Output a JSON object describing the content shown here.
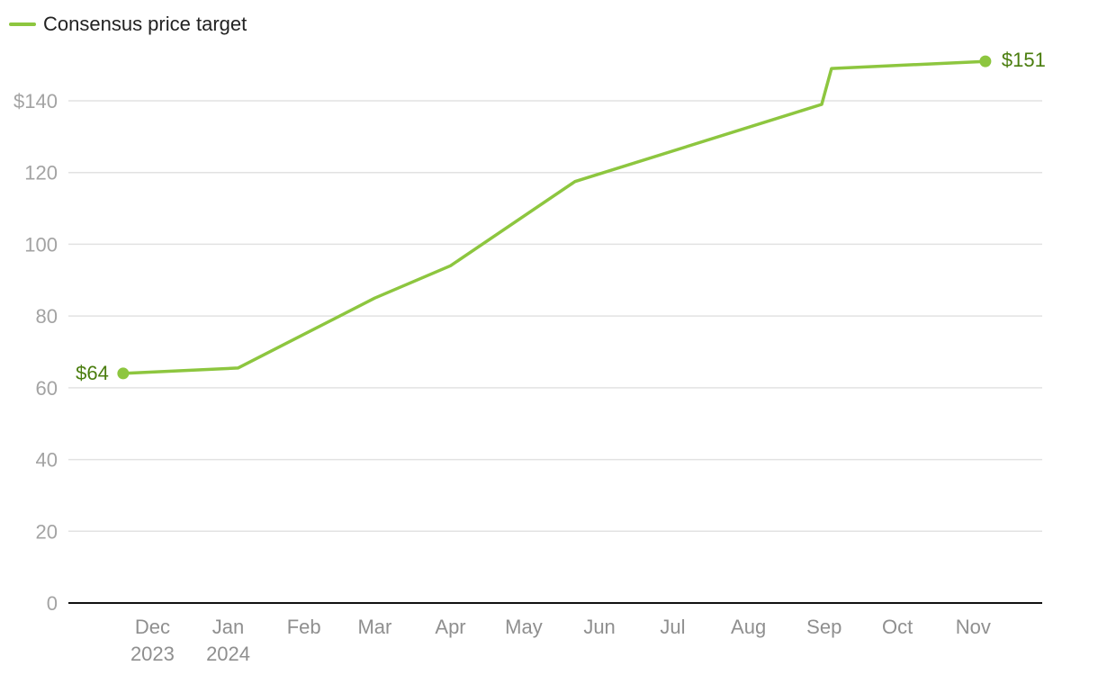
{
  "legend": {
    "label": "Consensus price target"
  },
  "colors": {
    "line": "#8dc63f",
    "label": "#4a7d0e",
    "grid": "#e2e2e2",
    "axis": "#111111"
  },
  "chart_data": {
    "type": "line",
    "xlabel": "",
    "ylabel": "",
    "ylim": [
      0,
      150
    ],
    "yticks": [
      {
        "value": 0,
        "label": "0"
      },
      {
        "value": 20,
        "label": "20"
      },
      {
        "value": 40,
        "label": "40"
      },
      {
        "value": 60,
        "label": "60"
      },
      {
        "value": 80,
        "label": "80"
      },
      {
        "value": 100,
        "label": "100"
      },
      {
        "value": 120,
        "label": "120"
      },
      {
        "value": 140,
        "label": "$140"
      }
    ],
    "xrange": [
      "2023-11-01",
      "2024-11-30"
    ],
    "xticks": [
      {
        "date": "2023-12-01",
        "label": "Dec",
        "sublabel": "2023"
      },
      {
        "date": "2024-01-01",
        "label": "Jan",
        "sublabel": "2024"
      },
      {
        "date": "2024-02-01",
        "label": "Feb",
        "sublabel": ""
      },
      {
        "date": "2024-03-01",
        "label": "Mar",
        "sublabel": ""
      },
      {
        "date": "2024-04-01",
        "label": "Apr",
        "sublabel": ""
      },
      {
        "date": "2024-05-01",
        "label": "May",
        "sublabel": ""
      },
      {
        "date": "2024-06-01",
        "label": "Jun",
        "sublabel": ""
      },
      {
        "date": "2024-07-01",
        "label": "Jul",
        "sublabel": ""
      },
      {
        "date": "2024-08-01",
        "label": "Aug",
        "sublabel": ""
      },
      {
        "date": "2024-09-01",
        "label": "Sep",
        "sublabel": ""
      },
      {
        "date": "2024-10-01",
        "label": "Oct",
        "sublabel": ""
      },
      {
        "date": "2024-11-01",
        "label": "Nov",
        "sublabel": ""
      }
    ],
    "series": [
      {
        "name": "Consensus price target",
        "points": [
          {
            "x": "2023-11-19",
            "y": 64
          },
          {
            "x": "2024-01-05",
            "y": 65.5
          },
          {
            "x": "2024-03-01",
            "y": 85
          },
          {
            "x": "2024-04-01",
            "y": 94
          },
          {
            "x": "2024-05-22",
            "y": 117.5
          },
          {
            "x": "2024-08-31",
            "y": 139
          },
          {
            "x": "2024-09-04",
            "y": 149
          },
          {
            "x": "2024-11-06",
            "y": 151
          }
        ]
      }
    ],
    "start_label": "$64",
    "end_label": "$151",
    "grid": true,
    "legend_position": "top-left"
  }
}
